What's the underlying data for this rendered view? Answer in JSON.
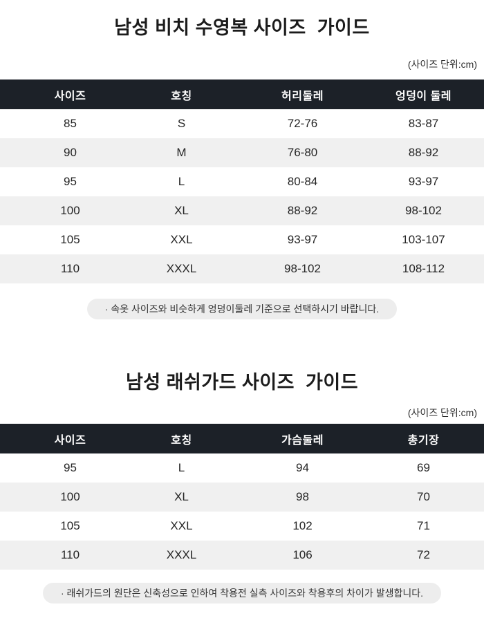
{
  "colors": {
    "header_bg": "#1c2128",
    "stripe_bg": "#f0f0f0",
    "note_bg": "#ededed",
    "header_text": "#ffffff",
    "body_text": "#222222"
  },
  "sections": [
    {
      "title": "남성 비치 수영복 사이즈  가이드",
      "unit_label": "(사이즈 단위:cm)",
      "columns": [
        "사이즈",
        "호칭",
        "허리둘레",
        "엉덩이 둘레"
      ],
      "rows": [
        [
          "85",
          "S",
          "72-76",
          "83-87"
        ],
        [
          "90",
          "M",
          "76-80",
          "88-92"
        ],
        [
          "95",
          "L",
          "80-84",
          "93-97"
        ],
        [
          "100",
          "XL",
          "88-92",
          "98-102"
        ],
        [
          "105",
          "XXL",
          "93-97",
          "103-107"
        ],
        [
          "110",
          "XXXL",
          "98-102",
          "108-112"
        ]
      ],
      "note": "· 속옷 사이즈와 비슷하게 엉덩이둘레 기준으로 선택하시기 바랍니다."
    },
    {
      "title": "남성 래쉬가드 사이즈  가이드",
      "unit_label": "(사이즈 단위:cm)",
      "columns": [
        "사이즈",
        "호칭",
        "가슴둘레",
        "총기장"
      ],
      "rows": [
        [
          "95",
          "L",
          "94",
          "69"
        ],
        [
          "100",
          "XL",
          "98",
          "70"
        ],
        [
          "105",
          "XXL",
          "102",
          "71"
        ],
        [
          "110",
          "XXXL",
          "106",
          "72"
        ]
      ],
      "note": "· 래쉬가드의 원단은 신축성으로 인하여 착용전 실측 사이즈와 착용후의 차이가 발생합니다."
    }
  ]
}
